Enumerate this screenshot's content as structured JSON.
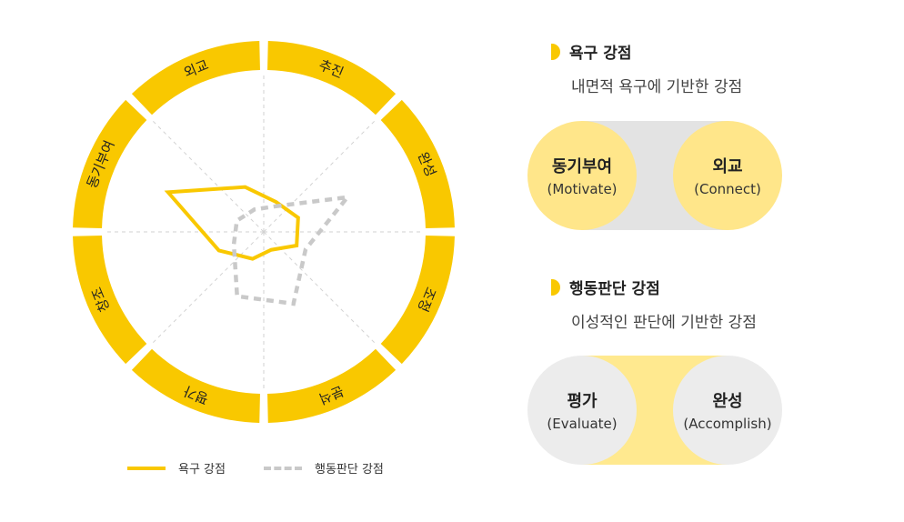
{
  "chart_data": {
    "type": "radar",
    "axes": [
      "추진",
      "완성",
      "조정",
      "분석",
      "평가",
      "창조",
      "동기부여",
      "외교"
    ],
    "rmax": 100,
    "grid": true,
    "series": [
      {
        "name": "욕구 강점",
        "style": "solid",
        "color": "#f9c800",
        "values": [
          20,
          23,
          22,
          12,
          18,
          30,
          64,
          30
        ]
      },
      {
        "name": "행동판단 강점",
        "style": "dashed",
        "color": "#c9c9c9",
        "values": [
          17,
          56,
          28,
          48,
          43,
          20,
          18,
          15
        ]
      }
    ],
    "legend_placement": "bottom"
  },
  "colors": {
    "accent": "#f9c800",
    "pill_yellow": "#ffe68a",
    "pill_gray": "#ececec",
    "pill_band_yellow": "#ffe98f",
    "pill_band_gray": "#e3e3e3"
  },
  "legend": {
    "desire": "욕구 강점",
    "action": "행동판단 강점"
  },
  "section1": {
    "title": "욕구 강점",
    "subtitle": "내면적 욕구에 기반한 강점",
    "left": {
      "ko": "동기부여",
      "en": "(Motivate)"
    },
    "right": {
      "ko": "외교",
      "en": "(Connect)"
    }
  },
  "section2": {
    "title": "행동판단 강점",
    "subtitle": "이성적인 판단에 기반한 강점",
    "left": {
      "ko": "평가",
      "en": "(Evaluate)"
    },
    "right": {
      "ko": "완성",
      "en": "(Accomplish)"
    }
  }
}
